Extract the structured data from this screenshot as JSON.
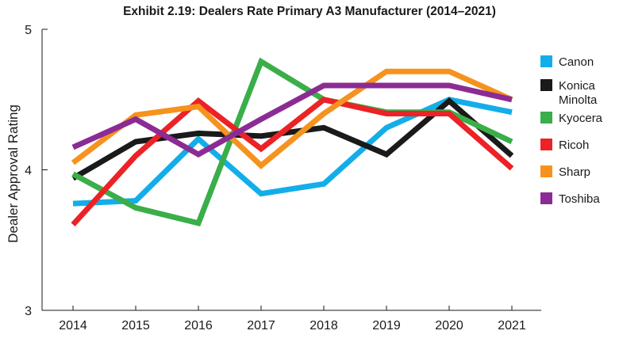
{
  "chart_data": {
    "type": "line",
    "title": "Exhibit 2.19: Dealers Rate Primary A3 Manufacturer (2014–2021)",
    "xlabel": "",
    "ylabel": "Dealer Approval Rating",
    "x": [
      "2014",
      "2015",
      "2016",
      "2017",
      "2018",
      "2019",
      "2020",
      "2021"
    ],
    "ylim": [
      3,
      5
    ],
    "yticks": [
      "3",
      "4",
      "5"
    ],
    "grid": false,
    "legend_position": "right",
    "series": [
      {
        "name": "Canon",
        "color": "#12aee9",
        "values": [
          3.76,
          3.78,
          4.22,
          3.83,
          3.9,
          4.3,
          4.5,
          4.41
        ]
      },
      {
        "name": "Konica Minolta",
        "color": "#1a1a1a",
        "values": [
          3.94,
          4.2,
          4.26,
          4.24,
          4.3,
          4.11,
          4.49,
          4.1
        ]
      },
      {
        "name": "Kyocera",
        "color": "#3aae49",
        "values": [
          3.97,
          3.73,
          3.62,
          4.77,
          4.5,
          4.41,
          4.41,
          4.2
        ]
      },
      {
        "name": "Ricoh",
        "color": "#ec2226",
        "values": [
          3.61,
          4.1,
          4.49,
          4.15,
          4.5,
          4.4,
          4.4,
          4.01
        ]
      },
      {
        "name": "Sharp",
        "color": "#f6921e",
        "values": [
          4.05,
          4.39,
          4.45,
          4.03,
          4.4,
          4.7,
          4.7,
          4.5
        ]
      },
      {
        "name": "Toshiba",
        "color": "#8b2c94",
        "values": [
          4.16,
          4.36,
          4.11,
          4.36,
          4.6,
          4.6,
          4.6,
          4.5
        ]
      }
    ],
    "legend_lines": {
      "Canon": [
        "Canon"
      ],
      "Konica Minolta": [
        "Konica",
        "Minolta"
      ],
      "Kyocera": [
        "Kyocera"
      ],
      "Ricoh": [
        "Ricoh"
      ],
      "Sharp": [
        "Sharp"
      ],
      "Toshiba": [
        "Toshiba"
      ]
    }
  }
}
